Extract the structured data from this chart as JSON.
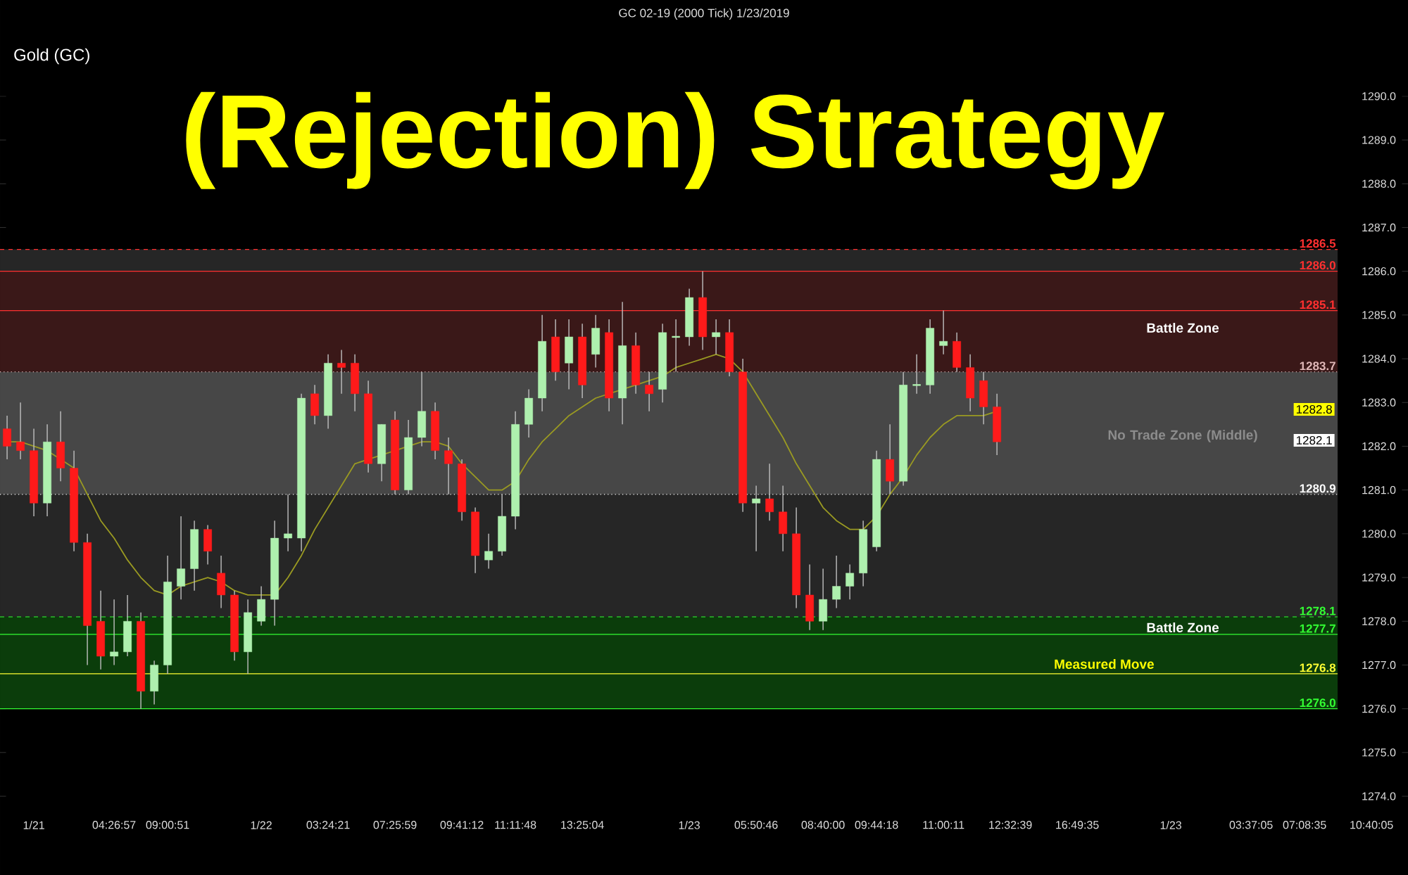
{
  "chart_data": {
    "type": "candlestick",
    "title": "(Rejection) Strategy",
    "subtitle": "Gold (GC)",
    "categories": [
      null,
      null,
      "1/21",
      null,
      null,
      null,
      null,
      null,
      "04:26:57",
      null,
      null,
      null,
      "09:00:51",
      null,
      null,
      null,
      null,
      null,
      null,
      "1/22",
      null,
      null,
      null,
      null,
      "03:24:21",
      null,
      null,
      null,
      null,
      "07:25:59",
      null,
      null,
      null,
      null,
      "09:41:12",
      null,
      null,
      null,
      "11:11:48",
      null,
      null,
      null,
      null,
      "13:25:04",
      null,
      null,
      null,
      null,
      null,
      null,
      null,
      "1/23",
      null,
      null,
      null,
      null,
      "05:50:46",
      null,
      null,
      null,
      null,
      "08:40:00",
      null,
      null,
      null,
      "09:44:18",
      null,
      null,
      null,
      null,
      "11:00:11",
      null,
      null,
      null,
      null,
      "12:32:39",
      null,
      null,
      null,
      null,
      "16:49:35",
      null,
      null,
      null,
      null,
      null,
      null,
      "1/23",
      null,
      null,
      null,
      null,
      null,
      "03:37:05",
      null,
      null,
      null,
      "07:08:35",
      null,
      null,
      null,
      null,
      "10:40:05",
      null,
      null
    ],
    "ohlc": [
      [
        1282.4,
        1282.7,
        1281.7,
        1282.0
      ],
      [
        1282.1,
        1283.0,
        1281.7,
        1281.9
      ],
      [
        1281.9,
        1282.4,
        1280.4,
        1280.7
      ],
      [
        1280.7,
        1282.5,
        1280.4,
        1282.1
      ],
      [
        1282.1,
        1282.8,
        1281.2,
        1281.5
      ],
      [
        1281.5,
        1281.9,
        1279.6,
        1279.8
      ],
      [
        1279.8,
        1280.0,
        1277.0,
        1277.9
      ],
      [
        1278.0,
        1278.7,
        1276.9,
        1277.2
      ],
      [
        1277.2,
        1278.5,
        1277.0,
        1277.3
      ],
      [
        1277.3,
        1278.6,
        1277.2,
        1278.0
      ],
      [
        1278.0,
        1278.2,
        1276.0,
        1276.4
      ],
      [
        1276.4,
        1277.1,
        1276.1,
        1277.0
      ],
      [
        1277.0,
        1279.5,
        1276.8,
        1278.9
      ],
      [
        1278.8,
        1280.4,
        1278.5,
        1279.2
      ],
      [
        1279.2,
        1280.3,
        1278.7,
        1280.1
      ],
      [
        1280.1,
        1280.2,
        1279.3,
        1279.6
      ],
      [
        1279.1,
        1279.5,
        1278.3,
        1278.6
      ],
      [
        1278.6,
        1278.7,
        1277.1,
        1277.3
      ],
      [
        1277.3,
        1278.5,
        1276.8,
        1278.2
      ],
      [
        1278.0,
        1278.8,
        1277.9,
        1278.5
      ],
      [
        1278.5,
        1280.3,
        1277.9,
        1279.9
      ],
      [
        1279.9,
        1280.9,
        1279.6,
        1280.0
      ],
      [
        1279.9,
        1283.2,
        1279.6,
        1283.1
      ],
      [
        1283.2,
        1283.4,
        1282.5,
        1282.7
      ],
      [
        1282.7,
        1284.1,
        1282.4,
        1283.9
      ],
      [
        1283.9,
        1284.2,
        1283.2,
        1283.8
      ],
      [
        1283.9,
        1284.1,
        1282.8,
        1283.2
      ],
      [
        1283.2,
        1283.5,
        1281.4,
        1281.6
      ],
      [
        1281.6,
        1282.5,
        1281.2,
        1282.5
      ],
      [
        1282.6,
        1282.8,
        1280.9,
        1281.0
      ],
      [
        1281.0,
        1282.6,
        1280.9,
        1282.2
      ],
      [
        1282.2,
        1283.7,
        1282.0,
        1282.8
      ],
      [
        1282.8,
        1283.0,
        1281.7,
        1281.9
      ],
      [
        1281.9,
        1282.2,
        1280.9,
        1281.6
      ],
      [
        1281.6,
        1281.7,
        1280.3,
        1280.5
      ],
      [
        1280.5,
        1280.6,
        1279.1,
        1279.5
      ],
      [
        1279.4,
        1280.0,
        1279.2,
        1279.6
      ],
      [
        1279.6,
        1280.9,
        1279.5,
        1280.4
      ],
      [
        1280.4,
        1282.8,
        1280.1,
        1282.5
      ],
      [
        1282.5,
        1283.3,
        1282.2,
        1283.1
      ],
      [
        1283.1,
        1285.0,
        1282.8,
        1284.4
      ],
      [
        1284.5,
        1284.9,
        1283.5,
        1283.7
      ],
      [
        1283.9,
        1284.9,
        1283.3,
        1284.5
      ],
      [
        1284.5,
        1284.8,
        1283.1,
        1283.4
      ],
      [
        1284.1,
        1285.0,
        1283.8,
        1284.7
      ],
      [
        1284.6,
        1284.9,
        1282.8,
        1283.1
      ],
      [
        1283.1,
        1285.3,
        1282.5,
        1284.3
      ],
      [
        1284.3,
        1284.6,
        1283.2,
        1283.4
      ],
      [
        1283.4,
        1283.7,
        1282.8,
        1283.2
      ],
      [
        1283.3,
        1284.8,
        1283.0,
        1284.6
      ],
      [
        1284.5,
        1284.9,
        1283.7,
        1284.5
      ],
      [
        1284.5,
        1285.6,
        1284.3,
        1285.4
      ],
      [
        1285.4,
        1286.0,
        1284.2,
        1284.5
      ],
      [
        1284.5,
        1284.9,
        1284.1,
        1284.6
      ],
      [
        1284.6,
        1284.9,
        1283.6,
        1283.7
      ],
      [
        1283.7,
        1284.0,
        1280.5,
        1280.7
      ],
      [
        1280.7,
        1281.1,
        1279.6,
        1280.8
      ],
      [
        1280.8,
        1281.6,
        1280.3,
        1280.5
      ],
      [
        1280.5,
        1281.1,
        1279.6,
        1280.0
      ],
      [
        1280.0,
        1280.6,
        1278.3,
        1278.6
      ],
      [
        1278.6,
        1279.3,
        1277.8,
        1278.0
      ],
      [
        1278.0,
        1279.2,
        1277.8,
        1278.5
      ],
      [
        1278.5,
        1279.5,
        1278.3,
        1278.8
      ],
      [
        1278.8,
        1279.3,
        1278.5,
        1279.1
      ],
      [
        1279.1,
        1280.3,
        1278.8,
        1280.1
      ],
      [
        1279.7,
        1281.9,
        1279.6,
        1281.7
      ],
      [
        1281.7,
        1282.5,
        1280.9,
        1281.2
      ],
      [
        1281.2,
        1283.7,
        1281.1,
        1283.4
      ],
      [
        1283.4,
        1284.1,
        1283.2,
        1283.4
      ],
      [
        1283.4,
        1284.9,
        1283.2,
        1284.7
      ],
      [
        1284.3,
        1285.1,
        1284.1,
        1284.4
      ],
      [
        1284.4,
        1284.6,
        1283.7,
        1283.8
      ],
      [
        1283.8,
        1284.1,
        1282.8,
        1283.1
      ],
      [
        1283.5,
        1283.7,
        1282.5,
        1282.9
      ],
      [
        1282.9,
        1283.2,
        1281.8,
        1282.1
      ],
      null,
      null,
      null,
      null,
      null,
      null,
      null,
      null,
      null,
      null,
      null,
      null,
      null,
      null,
      null,
      null,
      null,
      null,
      null,
      null,
      null,
      null,
      null,
      null,
      null,
      null,
      null,
      null,
      null,
      null
    ],
    "series": [
      {
        "type": "line",
        "color": "#9a9a22",
        "values": [
          1282.1,
          1282.1,
          1282.0,
          1281.9,
          1281.7,
          1281.5,
          1280.9,
          1280.3,
          1279.9,
          1279.4,
          1279.0,
          1278.7,
          1278.6,
          1278.8,
          1278.9,
          1279.0,
          1278.9,
          1278.7,
          1278.6,
          1278.6,
          1278.6,
          1279.0,
          1279.5,
          1280.1,
          1280.6,
          1281.1,
          1281.6,
          1281.7,
          1281.8,
          1281.9,
          1282.0,
          1282.1,
          1282.1,
          1282.0,
          1281.6,
          1281.3,
          1281.0,
          1281.0,
          1281.2,
          1281.7,
          1282.1,
          1282.4,
          1282.7,
          1282.9,
          1283.1,
          1283.2,
          1283.3,
          1283.4,
          1283.5,
          1283.6,
          1283.8,
          1283.9,
          1284.0,
          1284.1,
          1284.0,
          1283.7,
          1283.2,
          1282.7,
          1282.2,
          1281.6,
          1281.1,
          1280.6,
          1280.3,
          1280.1,
          1280.1,
          1280.4,
          1280.9,
          1281.3,
          1281.8,
          1282.2,
          1282.5,
          1282.7,
          1282.7,
          1282.7,
          1282.8,
          null,
          null,
          null,
          null,
          null,
          null,
          null,
          null,
          null,
          null,
          null,
          null,
          null,
          null,
          null,
          null,
          null,
          null,
          null,
          null,
          null,
          null,
          null,
          null,
          null,
          null,
          null,
          null,
          null,
          null
        ]
      }
    ],
    "ylim": [
      1272.2,
      1292.2
    ],
    "yticks": [
      {
        "value": 1274,
        "label": "1274.0"
      },
      {
        "value": 1275,
        "label": "1275.0"
      },
      {
        "value": 1276,
        "label": "1276.0"
      },
      {
        "value": 1277,
        "label": "1277.0"
      },
      {
        "value": 1278,
        "label": "1278.0"
      },
      {
        "value": 1279,
        "label": "1279.0"
      },
      {
        "value": 1280,
        "label": "1280.0"
      },
      {
        "value": 1281,
        "label": "1281.0"
      },
      {
        "value": 1282,
        "label": "1282.0"
      },
      {
        "value": 1283,
        "label": "1283.0"
      },
      {
        "value": 1284,
        "label": "1284.0"
      },
      {
        "value": 1285,
        "label": "1285.0"
      },
      {
        "value": 1286,
        "label": "1286.0"
      },
      {
        "value": 1287,
        "label": "1287.0"
      },
      {
        "value": 1288,
        "label": "1288.0"
      },
      {
        "value": 1289,
        "label": "1289.0"
      },
      {
        "value": 1290,
        "label": "1290.0"
      }
    ],
    "bands": [
      {
        "axis": "y",
        "from": 1278.1,
        "to": 1286.5,
        "color": "#262626"
      },
      {
        "axis": "y",
        "from": 1280.9,
        "to": 1283.7,
        "color": "#474747"
      },
      {
        "axis": "y",
        "from": 1283.7,
        "to": 1286.0,
        "color": "#3a1818"
      },
      {
        "axis": "y",
        "from": 1276.0,
        "to": 1278.1,
        "color": "#0b3d0b"
      }
    ],
    "ref_lines": [
      {
        "axis": "y",
        "value": 1286.5,
        "label": "1286.5",
        "color": "#ff3030",
        "line_style": "dashed"
      },
      {
        "axis": "y",
        "value": 1286.0,
        "label": "1286.0",
        "color": "#ff3030",
        "line_style": "solid"
      },
      {
        "axis": "y",
        "value": 1285.1,
        "label": "1285.1",
        "color": "#ff3030",
        "line_style": "solid"
      },
      {
        "axis": "y",
        "value": 1283.7,
        "label": "1283.7",
        "color": "#e0b8b8",
        "line_style": "dotted"
      },
      {
        "axis": "y",
        "value": 1280.9,
        "label": "1280.9",
        "color": "#ffffff",
        "line_style": "dotted"
      },
      {
        "axis": "y",
        "value": 1278.1,
        "label": "1278.1",
        "color": "#33ff33",
        "line_style": "dashed"
      },
      {
        "axis": "y",
        "value": 1277.7,
        "label": "1277.7",
        "color": "#33ff33",
        "line_style": "solid"
      },
      {
        "axis": "y",
        "value": 1276.8,
        "label": "1276.8",
        "color": "#ffff33",
        "line_style": "solid"
      },
      {
        "axis": "y",
        "value": 1276.0,
        "label": "1276.0",
        "color": "#33ff33",
        "line_style": "solid"
      }
    ],
    "annotations": [
      "GC 02-19 (2000 Tick) 1/23/2019",
      "Battle Zone",
      "No Trade Zone (Middle)",
      "Battle Zone",
      "Measured Move",
      "1282.8",
      "1282.1"
    ],
    "grid": false
  }
}
